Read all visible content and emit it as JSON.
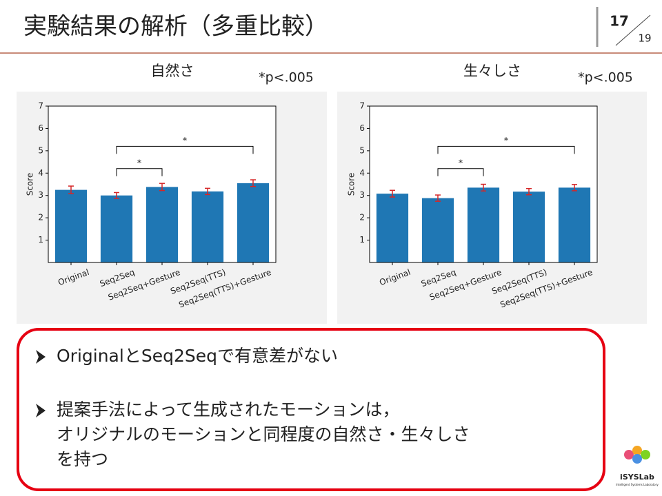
{
  "header": {
    "title": "実験結果の解析（多重比較）",
    "page": "17",
    "total": "19"
  },
  "chart_data": [
    {
      "type": "bar",
      "title": "自然さ",
      "note": "*p<.005",
      "y_label": "Score",
      "categories": [
        "Original",
        "Seq2Seq",
        "Seq2Seq+Gesture",
        "Seq2Seq(TTS)",
        "Seq2Seq(TTS)+Gesture"
      ],
      "values": [
        3.25,
        3.0,
        3.38,
        3.18,
        3.55
      ],
      "errors": [
        0.17,
        0.13,
        0.16,
        0.14,
        0.15
      ],
      "color": "#1f77b4",
      "error_color": "#d62728",
      "ylim": [
        0,
        7
      ],
      "yticks": [
        1,
        2,
        3,
        4,
        5,
        6,
        7
      ],
      "brackets": [
        {
          "between": [
            "Seq2Seq",
            "Seq2Seq+Gesture"
          ],
          "y": 4.2,
          "label": "*"
        },
        {
          "between": [
            "Seq2Seq",
            "Seq2Seq(TTS)+Gesture"
          ],
          "y": 5.2,
          "label": "*"
        }
      ]
    },
    {
      "type": "bar",
      "title": "生々しさ",
      "note": "*p<.005",
      "y_label": "Score",
      "categories": [
        "Original",
        "Seq2Seq",
        "Seq2Seq+Gesture",
        "Seq2Seq(TTS)",
        "Seq2Seq(TTS)+Gesture"
      ],
      "values": [
        3.08,
        2.88,
        3.35,
        3.17,
        3.35
      ],
      "errors": [
        0.15,
        0.14,
        0.15,
        0.14,
        0.14
      ],
      "color": "#1f77b4",
      "error_color": "#d62728",
      "ylim": [
        0,
        7
      ],
      "yticks": [
        1,
        2,
        3,
        4,
        5,
        6,
        7
      ],
      "brackets": [
        {
          "between": [
            "Seq2Seq",
            "Seq2Seq+Gesture"
          ],
          "y": 4.2,
          "label": "*"
        },
        {
          "between": [
            "Seq2Seq",
            "Seq2Seq(TTS)+Gesture"
          ],
          "y": 5.2,
          "label": "*"
        }
      ]
    }
  ],
  "bullets": [
    [
      "OriginalとSeq2Seqで有意差がない"
    ],
    [
      "提案手法によって生成されたモーションは，",
      "オリジナルのモーションと同程度の自然さ・生々しさ",
      "を持つ"
    ]
  ],
  "logo": {
    "name": "iSYSLab",
    "subtitle": "Intelligent Systems Laboratory"
  }
}
